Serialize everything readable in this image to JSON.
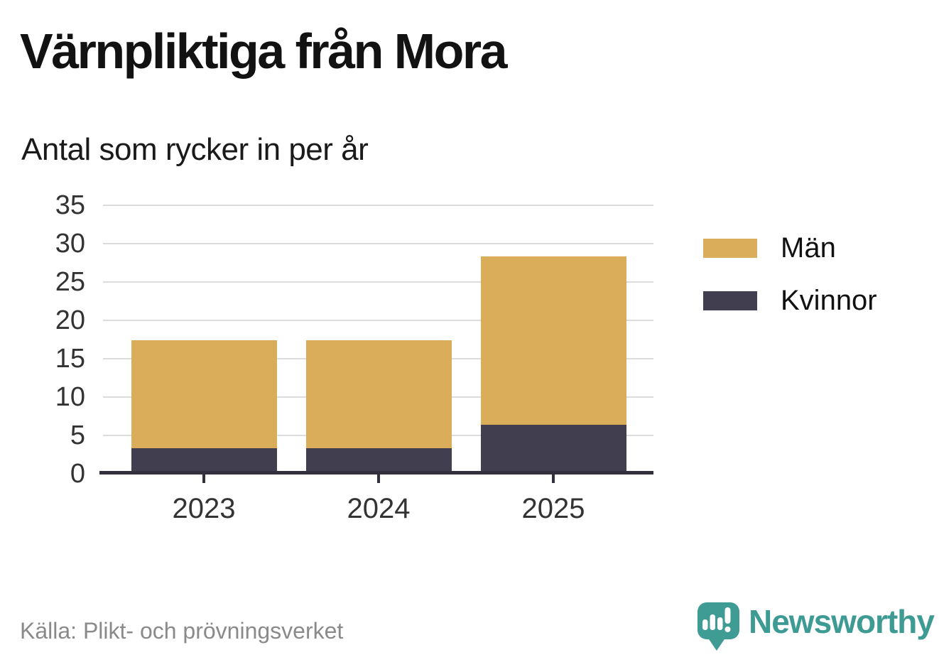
{
  "title": "Värnpliktiga från Mora",
  "subtitle": "Antal som rycker in per år",
  "source": "Källa: Plikt- och prövningsverket",
  "brand": {
    "name": "Newsworthy",
    "icon": "speech-bubble-bar-chart-icon",
    "color": "#3E9B94"
  },
  "chart_data": {
    "type": "bar",
    "stacked": true,
    "title": "Värnpliktiga från Mora",
    "subtitle": "Antal som rycker in per år",
    "categories": [
      "2023",
      "2024",
      "2025"
    ],
    "series": [
      {
        "name": "Kvinnor",
        "color": "#413E4F",
        "values": [
          3,
          3,
          6
        ]
      },
      {
        "name": "Män",
        "color": "#DAAD5A",
        "values": [
          14,
          14,
          22
        ]
      }
    ],
    "totals": [
      17,
      17,
      28
    ],
    "xlabel": "",
    "ylabel": "",
    "ylim": [
      0,
      35
    ],
    "yticks": [
      0,
      5,
      10,
      15,
      20,
      25,
      30,
      35
    ],
    "grid": "horizontal",
    "legend": {
      "position": "right",
      "entries": [
        {
          "label": "Män",
          "color": "#DAAD5A"
        },
        {
          "label": "Kvinnor",
          "color": "#413E4F"
        }
      ]
    }
  },
  "colors": {
    "background": "#FFFFFF",
    "title_text": "#121212",
    "axis": "#332F3D",
    "gridline": "#DCDCDC",
    "tick_label": "#333333",
    "source_text": "#8A8A8A",
    "bar_men": "#DAAD5A",
    "bar_women": "#413E4F",
    "brand_teal": "#3E9B94"
  }
}
